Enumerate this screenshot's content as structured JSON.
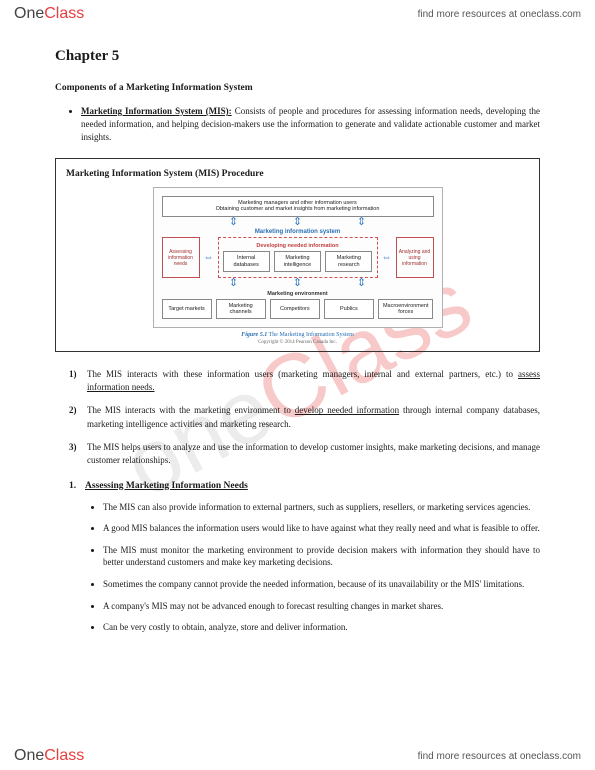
{
  "brand": {
    "part1": "One",
    "part2": "Class"
  },
  "resource_text": "find more resources at oneclass.com",
  "watermark": {
    "part1": "one",
    "part2": "Class"
  },
  "chapter_title": "Chapter 5",
  "section_heading": "Components of a Marketing Information System",
  "definition": {
    "term": "Marketing Information System (MIS):",
    "body": " Consists of people and procedures for assessing information needs, developing the needed information, and helping decision-makers use the information to generate and validate actionable customer and market insights."
  },
  "diagram": {
    "title": "Marketing Information System (MIS) Procedure",
    "top_block": "Marketing managers and other information users\nObtaining customer and market insights from marketing information",
    "mis_label": "Marketing information system",
    "dev_label": "Developing needed information",
    "left_side": "Assessing information needs",
    "right_side": "Analyzing and using information",
    "mid_blocks": [
      "Internal databases",
      "Marketing intelligence",
      "Marketing research"
    ],
    "env_label": "Marketing environment",
    "bottom_blocks": [
      "Target markets",
      "Marketing channels",
      "Competitors",
      "Publics",
      "Macroenvironment forces"
    ],
    "caption_label": "Figure 5.1",
    "caption_text": " The Marketing Information System",
    "copyright": "Copyright © 2014 Pearson Canada Inc.",
    "colors": {
      "arrow": "#3a7fc8",
      "blue_text": "#2a6fb5",
      "red_text": "#c04040",
      "red_border": "#d05050",
      "box_border": "#888888"
    }
  },
  "numbered_points": [
    {
      "n": "1)",
      "pre": "The MIS interacts with these information users (marketing managers, internal and external partners, etc.) to ",
      "u": "assess information needs.",
      "post": ""
    },
    {
      "n": "2)",
      "pre": "The MIS interacts with the marketing environment to ",
      "u": "develop needed information",
      "post": " through internal company databases, marketing intelligence activities and marketing research."
    },
    {
      "n": "3)",
      "pre": "The MIS helps users to analyze and use the information to develop customer insights, make marketing decisions, and manage customer relationships.",
      "u": "",
      "post": ""
    }
  ],
  "subsection": {
    "num": "1.",
    "title": "Assessing Marketing Information Needs",
    "bullets": [
      "The MIS can also provide information to external partners, such as suppliers, resellers, or marketing services agencies.",
      "A good MIS balances the information users would like to have against what they really need and what is feasible to offer.",
      "The MIS must monitor the marketing environment to provide decision makers with information they should have to better understand customers and make key marketing decisions.",
      "Sometimes the company cannot provide the needed information, because of its unavailability or the MIS' limitations.",
      "A company's MIS may not be advanced enough to forecast resulting changes in market shares.",
      "Can be very costly to obtain, analyze, store and deliver information."
    ]
  }
}
